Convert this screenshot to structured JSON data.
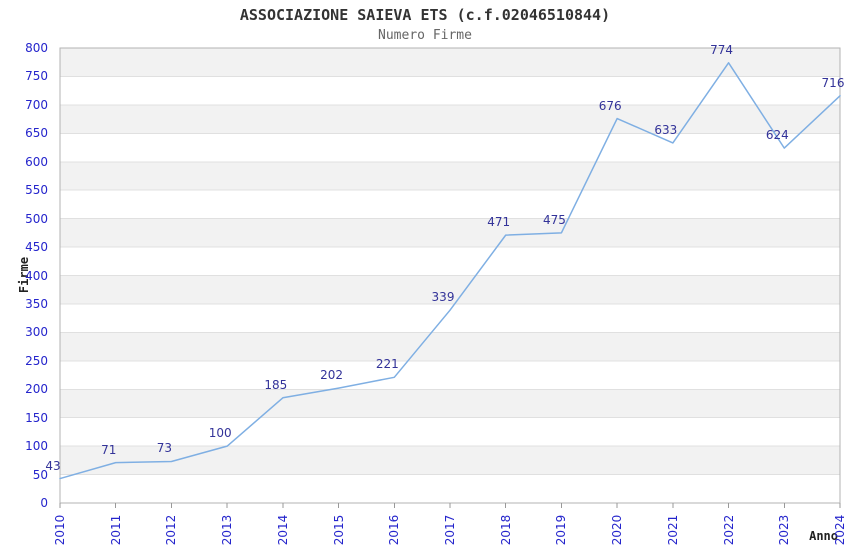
{
  "header": {
    "title": "ASSOCIAZIONE SAIEVA ETS (c.f.02046510844)",
    "subtitle": "Numero Firme"
  },
  "chart_data": {
    "type": "line",
    "title": "ASSOCIAZIONE SAIEVA ETS (c.f.02046510844)",
    "subtitle": "Numero Firme",
    "xlabel": "Anno",
    "ylabel": "Firme",
    "x": [
      "2010",
      "2011",
      "2012",
      "2013",
      "2014",
      "2015",
      "2016",
      "2017",
      "2018",
      "2019",
      "2020",
      "2021",
      "2022",
      "2023",
      "2024"
    ],
    "series": [
      {
        "name": "Numero Firme",
        "values": [
          43,
          71,
          73,
          100,
          185,
          202,
          221,
          339,
          471,
          475,
          676,
          633,
          774,
          624,
          716
        ]
      }
    ],
    "ylim": [
      0,
      800
    ],
    "ytick_step": 50,
    "yticks": [
      0,
      50,
      100,
      150,
      200,
      250,
      300,
      350,
      400,
      450,
      500,
      550,
      600,
      650,
      700,
      750,
      800
    ],
    "grid": true,
    "banding": "alternating horizontal 50-unit bands, gray on odd bands",
    "legend_position": "none",
    "data_labels_shown": true,
    "markers": false,
    "style": {
      "line_color": "#7fafe3",
      "band_color": "#f2f2f2",
      "grid_color": "#e0e0e0",
      "frame_color": "#b3b3b3",
      "tick_color": "#999999",
      "tick_label_color": "#2525cc",
      "data_label_color": "#333399",
      "title_color": "#333333",
      "subtitle_color": "#666666",
      "axis_title_color": "#222222"
    }
  }
}
